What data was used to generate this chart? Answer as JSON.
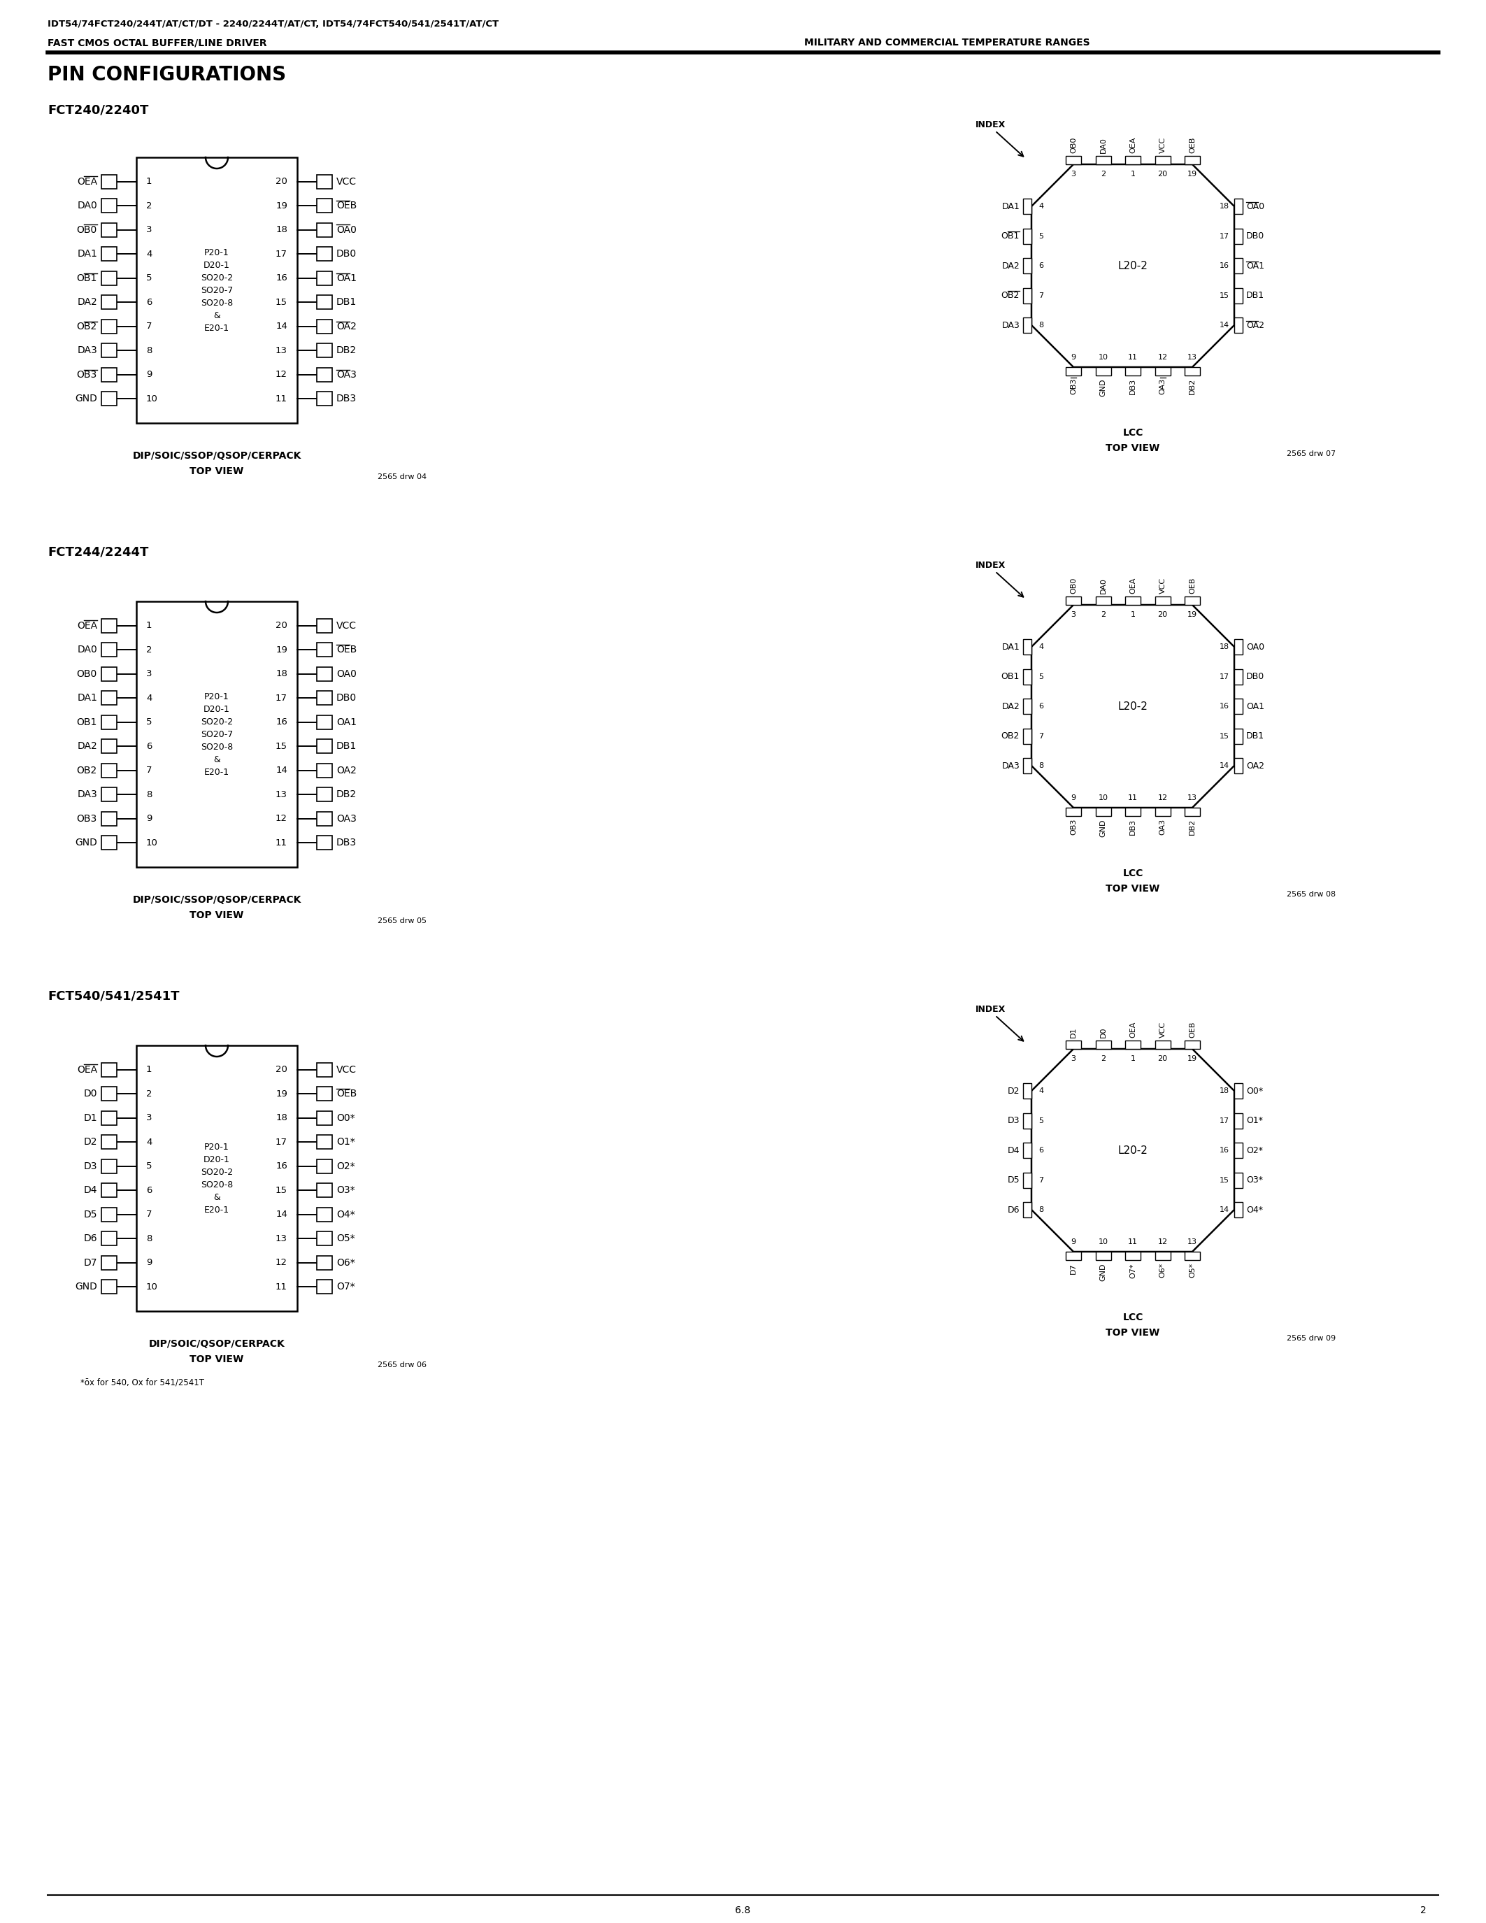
{
  "header_line1": "IDT54/74FCT240/244T/AT/CT/DT - 2240/2244T/AT/CT, IDT54/74FCT540/541/2541T/AT/CT",
  "header_line2_left": "FAST CMOS OCTAL BUFFER/LINE DRIVER",
  "header_line2_right": "MILITARY AND COMMERCIAL TEMPERATURE RANGES",
  "section_title": "PIN CONFIGURATIONS",
  "bg_color": "#ffffff",
  "text_color": "#000000",
  "page_number": "2",
  "page_label": "6.8",
  "dip_sections": [
    {
      "title": "FCT240/2240T",
      "left_pins": [
        {
          "name": "OEA",
          "bar": true,
          "num": 1
        },
        {
          "name": "DA0",
          "bar": false,
          "num": 2
        },
        {
          "name": "OB0",
          "bar": true,
          "num": 3
        },
        {
          "name": "DA1",
          "bar": false,
          "num": 4
        },
        {
          "name": "OB1",
          "bar": true,
          "num": 5
        },
        {
          "name": "DA2",
          "bar": false,
          "num": 6
        },
        {
          "name": "OB2",
          "bar": true,
          "num": 7
        },
        {
          "name": "DA3",
          "bar": false,
          "num": 8
        },
        {
          "name": "OB3",
          "bar": true,
          "num": 9
        },
        {
          "name": "GND",
          "bar": false,
          "num": 10
        }
      ],
      "right_pins": [
        {
          "name": "VCC",
          "bar": false,
          "num": 20
        },
        {
          "name": "OEB",
          "bar": true,
          "num": 19
        },
        {
          "name": "OA0",
          "bar": true,
          "num": 18
        },
        {
          "name": "DB0",
          "bar": false,
          "num": 17
        },
        {
          "name": "OA1",
          "bar": true,
          "num": 16
        },
        {
          "name": "DB1",
          "bar": false,
          "num": 15
        },
        {
          "name": "OA2",
          "bar": true,
          "num": 14
        },
        {
          "name": "DB2",
          "bar": false,
          "num": 13
        },
        {
          "name": "OA3",
          "bar": true,
          "num": 12
        },
        {
          "name": "DB3",
          "bar": false,
          "num": 11
        }
      ],
      "pkg_lines": [
        "P20-1",
        "D20-1",
        "SO20-2",
        "SO20-7",
        "SO20-8",
        "&",
        "E20-1"
      ],
      "caption": "DIP/SOIC/SSOP/QSOP/CERPACK",
      "caption2": "TOP VIEW",
      "drw": "2565 drw 04"
    },
    {
      "title": "FCT244/2244T",
      "left_pins": [
        {
          "name": "OEA",
          "bar": true,
          "num": 1
        },
        {
          "name": "DA0",
          "bar": false,
          "num": 2
        },
        {
          "name": "OB0",
          "bar": false,
          "num": 3
        },
        {
          "name": "DA1",
          "bar": false,
          "num": 4
        },
        {
          "name": "OB1",
          "bar": false,
          "num": 5
        },
        {
          "name": "DA2",
          "bar": false,
          "num": 6
        },
        {
          "name": "OB2",
          "bar": false,
          "num": 7
        },
        {
          "name": "DA3",
          "bar": false,
          "num": 8
        },
        {
          "name": "OB3",
          "bar": false,
          "num": 9
        },
        {
          "name": "GND",
          "bar": false,
          "num": 10
        }
      ],
      "right_pins": [
        {
          "name": "VCC",
          "bar": false,
          "num": 20
        },
        {
          "name": "OEB",
          "bar": true,
          "num": 19
        },
        {
          "name": "OA0",
          "bar": false,
          "num": 18
        },
        {
          "name": "DB0",
          "bar": false,
          "num": 17
        },
        {
          "name": "OA1",
          "bar": false,
          "num": 16
        },
        {
          "name": "DB1",
          "bar": false,
          "num": 15
        },
        {
          "name": "OA2",
          "bar": false,
          "num": 14
        },
        {
          "name": "DB2",
          "bar": false,
          "num": 13
        },
        {
          "name": "OA3",
          "bar": false,
          "num": 12
        },
        {
          "name": "DB3",
          "bar": false,
          "num": 11
        }
      ],
      "pkg_lines": [
        "P20-1",
        "D20-1",
        "SO20-2",
        "SO20-7",
        "SO20-8",
        "&",
        "E20-1"
      ],
      "caption": "DIP/SOIC/SSOP/QSOP/CERPACK",
      "caption2": "TOP VIEW",
      "drw": "2565 drw 05"
    },
    {
      "title": "FCT540/541/2541T",
      "left_pins": [
        {
          "name": "OEA",
          "bar": true,
          "num": 1
        },
        {
          "name": "D0",
          "bar": false,
          "num": 2
        },
        {
          "name": "D1",
          "bar": false,
          "num": 3
        },
        {
          "name": "D2",
          "bar": false,
          "num": 4
        },
        {
          "name": "D3",
          "bar": false,
          "num": 5
        },
        {
          "name": "D4",
          "bar": false,
          "num": 6
        },
        {
          "name": "D5",
          "bar": false,
          "num": 7
        },
        {
          "name": "D6",
          "bar": false,
          "num": 8
        },
        {
          "name": "D7",
          "bar": false,
          "num": 9
        },
        {
          "name": "GND",
          "bar": false,
          "num": 10
        }
      ],
      "right_pins": [
        {
          "name": "VCC",
          "bar": false,
          "num": 20
        },
        {
          "name": "OEB",
          "bar": true,
          "num": 19
        },
        {
          "name": "O0*",
          "bar": false,
          "num": 18
        },
        {
          "name": "O1*",
          "bar": false,
          "num": 17
        },
        {
          "name": "O2*",
          "bar": false,
          "num": 16
        },
        {
          "name": "O3*",
          "bar": false,
          "num": 15
        },
        {
          "name": "O4*",
          "bar": false,
          "num": 14
        },
        {
          "name": "O5*",
          "bar": false,
          "num": 13
        },
        {
          "name": "O6*",
          "bar": false,
          "num": 12
        },
        {
          "name": "O7*",
          "bar": false,
          "num": 11
        }
      ],
      "pkg_lines": [
        "P20-1",
        "D20-1",
        "SO20-2",
        "SO20-8",
        "&",
        "E20-1"
      ],
      "caption": "DIP/SOIC/QSOP/CERPACK",
      "caption2": "TOP VIEW",
      "drw": "2565 drw 06",
      "footnote": "*ōx for 540, Ox for 541/2541T"
    }
  ],
  "lcc_sections": [
    {
      "top_pins": [
        {
          "name": "OB0",
          "bar": true,
          "num": 3
        },
        {
          "name": "DA0",
          "bar": false,
          "num": 2
        },
        {
          "name": "OEA",
          "bar": true,
          "num": 1
        },
        {
          "name": "VCC",
          "bar": false,
          "num": 20
        },
        {
          "name": "OEB",
          "bar": true,
          "num": 19
        }
      ],
      "bottom_pins": [
        {
          "name": "OB3",
          "bar": true,
          "num": 9
        },
        {
          "name": "GND",
          "bar": false,
          "num": 10
        },
        {
          "name": "DB3",
          "bar": false,
          "num": 11
        },
        {
          "name": "OA3",
          "bar": true,
          "num": 12
        },
        {
          "name": "DB2",
          "bar": false,
          "num": 13
        }
      ],
      "right_pins": [
        {
          "name": "OA0",
          "bar": true,
          "num": 18
        },
        {
          "name": "DB0",
          "bar": false,
          "num": 17
        },
        {
          "name": "OA1",
          "bar": true,
          "num": 16
        },
        {
          "name": "DB1",
          "bar": false,
          "num": 15
        },
        {
          "name": "OA2",
          "bar": true,
          "num": 14
        }
      ],
      "left_pins": [
        {
          "name": "DA1",
          "bar": false,
          "num": 4
        },
        {
          "name": "OB1",
          "bar": true,
          "num": 5
        },
        {
          "name": "DA2",
          "bar": false,
          "num": 6
        },
        {
          "name": "OB2",
          "bar": true,
          "num": 7
        },
        {
          "name": "DA3",
          "bar": false,
          "num": 8
        }
      ],
      "center_label": "L20-2",
      "caption": "LCC",
      "caption2": "TOP VIEW",
      "drw": "2565 drw 07"
    },
    {
      "top_pins": [
        {
          "name": "OB0",
          "bar": false,
          "num": 3
        },
        {
          "name": "DA0",
          "bar": false,
          "num": 2
        },
        {
          "name": "OEA",
          "bar": true,
          "num": 1
        },
        {
          "name": "VCC",
          "bar": false,
          "num": 20
        },
        {
          "name": "OEB",
          "bar": true,
          "num": 19
        }
      ],
      "bottom_pins": [
        {
          "name": "OB3",
          "bar": false,
          "num": 9
        },
        {
          "name": "GND",
          "bar": false,
          "num": 10
        },
        {
          "name": "DB3",
          "bar": false,
          "num": 11
        },
        {
          "name": "OA3",
          "bar": false,
          "num": 12
        },
        {
          "name": "DB2",
          "bar": false,
          "num": 13
        }
      ],
      "right_pins": [
        {
          "name": "OA0",
          "bar": false,
          "num": 18
        },
        {
          "name": "DB0",
          "bar": false,
          "num": 17
        },
        {
          "name": "OA1",
          "bar": false,
          "num": 16
        },
        {
          "name": "DB1",
          "bar": false,
          "num": 15
        },
        {
          "name": "OA2",
          "bar": false,
          "num": 14
        }
      ],
      "left_pins": [
        {
          "name": "DA1",
          "bar": false,
          "num": 4
        },
        {
          "name": "OB1",
          "bar": false,
          "num": 5
        },
        {
          "name": "DA2",
          "bar": false,
          "num": 6
        },
        {
          "name": "OB2",
          "bar": false,
          "num": 7
        },
        {
          "name": "DA3",
          "bar": false,
          "num": 8
        }
      ],
      "center_label": "L20-2",
      "caption": "LCC",
      "caption2": "TOP VIEW",
      "drw": "2565 drw 08"
    },
    {
      "top_pins": [
        {
          "name": "D1",
          "bar": false,
          "num": 3
        },
        {
          "name": "D0",
          "bar": false,
          "num": 2
        },
        {
          "name": "OEA",
          "bar": true,
          "num": 1
        },
        {
          "name": "VCC",
          "bar": false,
          "num": 20
        },
        {
          "name": "OEB",
          "bar": true,
          "num": 19
        }
      ],
      "bottom_pins": [
        {
          "name": "D7",
          "bar": false,
          "num": 9
        },
        {
          "name": "GND",
          "bar": false,
          "num": 10
        },
        {
          "name": "O7*",
          "bar": false,
          "num": 11
        },
        {
          "name": "O6*",
          "bar": false,
          "num": 12
        },
        {
          "name": "O5*",
          "bar": false,
          "num": 13
        }
      ],
      "right_pins": [
        {
          "name": "O0*",
          "bar": false,
          "num": 18
        },
        {
          "name": "O1*",
          "bar": false,
          "num": 17
        },
        {
          "name": "O2*",
          "bar": false,
          "num": 16
        },
        {
          "name": "O3*",
          "bar": false,
          "num": 15
        },
        {
          "name": "O4*",
          "bar": false,
          "num": 14
        }
      ],
      "left_pins": [
        {
          "name": "D2",
          "bar": false,
          "num": 4
        },
        {
          "name": "D3",
          "bar": false,
          "num": 5
        },
        {
          "name": "D4",
          "bar": false,
          "num": 6
        },
        {
          "name": "D5",
          "bar": false,
          "num": 7
        },
        {
          "name": "D6",
          "bar": false,
          "num": 8
        }
      ],
      "center_label": "L20-2",
      "caption": "LCC",
      "caption2": "TOP VIEW",
      "drw": "2565 drw 09"
    }
  ]
}
